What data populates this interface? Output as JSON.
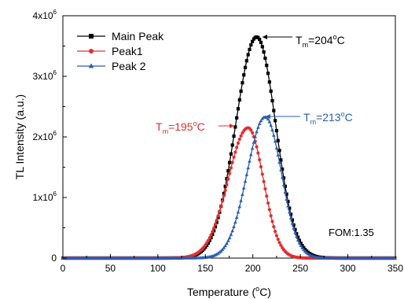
{
  "chart_data": {
    "type": "line",
    "title": "",
    "xlabel": "Temperature (°C)",
    "ylabel": "TL Intensity (a.u.)",
    "xlim": [
      0,
      350
    ],
    "ylim": [
      0,
      4000000
    ],
    "xticks": [
      0,
      50,
      100,
      150,
      200,
      250,
      300,
      350
    ],
    "ytick_labels": [
      {
        "value": 0,
        "base": "0",
        "exp": ""
      },
      {
        "value": 1000000,
        "base": "1x10",
        "exp": "6"
      },
      {
        "value": 2000000,
        "base": "2x10",
        "exp": "6"
      },
      {
        "value": 3000000,
        "base": "3x10",
        "exp": "6"
      },
      {
        "value": 4000000,
        "base": "4x10",
        "exp": "6"
      }
    ],
    "grid": false,
    "legend_position": "top-left",
    "series": [
      {
        "name": "Main Peak",
        "color": "#000000",
        "marker": "square",
        "peak_x": 204,
        "peak_y": 3650000,
        "sigma_left": 22,
        "sigma_right": 20
      },
      {
        "name": "Peak1",
        "color": "#e03030",
        "marker": "circle",
        "peak_x": 195,
        "peak_y": 2150000,
        "sigma_left": 21,
        "sigma_right": 16
      },
      {
        "name": "Peak 2",
        "color": "#2a5db0",
        "marker": "triangle",
        "peak_x": 213,
        "peak_y": 2330000,
        "sigma_left": 19,
        "sigma_right": 17
      }
    ],
    "annotations": [
      {
        "label_base": "T",
        "label_sub": "m",
        "label_value": "=204",
        "label_unit": "C",
        "color": "#000000",
        "x": 204,
        "y": 3650000,
        "arrow": "left"
      },
      {
        "label_base": "T",
        "label_sub": "m",
        "label_value": "=195",
        "label_unit": "C",
        "color": "#e03030",
        "x": 195,
        "y": 2150000,
        "arrow": "right"
      },
      {
        "label_base": "T",
        "label_sub": "m",
        "label_value": "=213",
        "label_unit": "C",
        "color": "#2a5db0",
        "x": 213,
        "y": 2330000,
        "arrow": "left"
      }
    ],
    "fom_text": "FOM:1.35"
  }
}
